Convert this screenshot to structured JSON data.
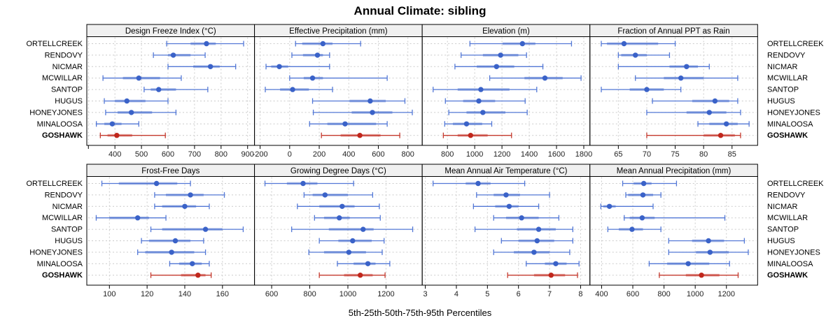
{
  "title": "Annual Climate: sibling",
  "caption": "5th-25th-50th-75th-95th Percentiles",
  "percentile_levels": [
    5,
    25,
    50,
    75,
    95
  ],
  "stations": [
    "ORTELLCREEK",
    "RENDOVY",
    "NICMAR",
    "MCWILLAR",
    "SANTOP",
    "HUGUS",
    "HONEYJONES",
    "MINALOOSA",
    "GOSHAWK"
  ],
  "highlight_station": "GOSHAWK",
  "colors": {
    "series": "#3A62C8",
    "series_whisker": "#5378D6",
    "series_band": "rgba(58,98,200,0.42)",
    "highlight": "#C0271C",
    "highlight_whisker": "#C53A2E",
    "highlight_band": "rgba(193,39,28,0.42)",
    "strip_bg": "#F0F0F0",
    "panel_border": "#000000",
    "grid": "#CBCBCB",
    "text": "#000000",
    "tick_text": "#222222"
  },
  "chart_data": [
    {
      "type": "scatter",
      "title": "Design Freeze Index (°C)",
      "xlim": [
        294,
        926
      ],
      "x_ticks": [
        300,
        400,
        500,
        600,
        700,
        800,
        900
      ],
      "x_tick_labels": [
        "",
        "400",
        "500",
        "600",
        "700",
        "800",
        "900"
      ],
      "percentiles": [
        [
          595,
          685,
          745,
          780,
          885
        ],
        [
          545,
          600,
          620,
          685,
          740
        ],
        [
          600,
          695,
          760,
          795,
          855
        ],
        [
          355,
          430,
          490,
          570,
          650
        ],
        [
          510,
          535,
          565,
          630,
          750
        ],
        [
          360,
          400,
          445,
          515,
          600
        ],
        [
          365,
          410,
          462,
          540,
          630
        ],
        [
          330,
          360,
          390,
          425,
          490
        ],
        [
          345,
          372,
          407,
          465,
          590
        ]
      ]
    },
    {
      "type": "scatter",
      "title": "Effective Precipitation (mm)",
      "xlim": [
        -238,
        897
      ],
      "x_ticks": [
        -200,
        0,
        200,
        400,
        600,
        800
      ],
      "x_tick_labels": [
        "-200",
        "0",
        "200",
        "400",
        "600",
        "800"
      ],
      "percentiles": [
        [
          40,
          85,
          225,
          290,
          480
        ],
        [
          15,
          90,
          188,
          225,
          270
        ],
        [
          -160,
          -125,
          -70,
          -10,
          270
        ],
        [
          0,
          95,
          155,
          225,
          660
        ],
        [
          -165,
          -65,
          20,
          130,
          290
        ],
        [
          155,
          405,
          545,
          650,
          780
        ],
        [
          160,
          420,
          560,
          695,
          830
        ],
        [
          135,
          255,
          375,
          585,
          660
        ],
        [
          215,
          345,
          475,
          615,
          745
        ]
      ]
    },
    {
      "type": "scatter",
      "title": "Elevation (m)",
      "xlim": [
        615,
        1845
      ],
      "x_ticks": [
        800,
        1000,
        1200,
        1400,
        1600,
        1800
      ],
      "x_tick_labels": [
        "800",
        "1000",
        "1200",
        "1400",
        "1600",
        "1800"
      ],
      "percentiles": [
        [
          965,
          1205,
          1350,
          1445,
          1710
        ],
        [
          900,
          1060,
          1190,
          1320,
          1380
        ],
        [
          855,
          1015,
          1160,
          1290,
          1500
        ],
        [
          1110,
          1365,
          1515,
          1645,
          1780
        ],
        [
          695,
          875,
          1045,
          1255,
          1455
        ],
        [
          785,
          915,
          1030,
          1150,
          1370
        ],
        [
          810,
          940,
          1060,
          1225,
          1385
        ],
        [
          780,
          840,
          940,
          1055,
          1125
        ],
        [
          770,
          875,
          970,
          1095,
          1270
        ]
      ]
    },
    {
      "type": "scatter",
      "title": "Fraction of Annual PPT as Rain",
      "xlim": [
        60,
        89.5
      ],
      "x_ticks": [
        65,
        70,
        75,
        80,
        85
      ],
      "x_tick_labels": [
        "65",
        "70",
        "75",
        "80",
        "85"
      ],
      "percentiles": [
        [
          62,
          63,
          66,
          72,
          75
        ],
        [
          65,
          65.5,
          68,
          70,
          74
        ],
        [
          65,
          74,
          77,
          79,
          81
        ],
        [
          68,
          73,
          76,
          80,
          86
        ],
        [
          62,
          67,
          70,
          73,
          76
        ],
        [
          71,
          78,
          82,
          84.5,
          86
        ],
        [
          70,
          77,
          81,
          84,
          86.5
        ],
        [
          79,
          81,
          84,
          86,
          88
        ],
        [
          70,
          80,
          83,
          85.5,
          86.5
        ]
      ]
    },
    {
      "type": "scatter",
      "title": "Frost-Free Days",
      "xlim": [
        88,
        177
      ],
      "x_ticks": [
        100,
        120,
        140,
        160
      ],
      "x_tick_labels": [
        "100",
        "120",
        "140",
        "160"
      ],
      "percentiles": [
        [
          96,
          105,
          125,
          136,
          143
        ],
        [
          124,
          130,
          143,
          150,
          161
        ],
        [
          124,
          128,
          140,
          146,
          153
        ],
        [
          93,
          100,
          115,
          121,
          130
        ],
        [
          122,
          128,
          151,
          160,
          171
        ],
        [
          117,
          121,
          135,
          143,
          150
        ],
        [
          115,
          119,
          133,
          145,
          151
        ],
        [
          132,
          137,
          144,
          149,
          153
        ],
        [
          122,
          138,
          147,
          151,
          154
        ]
      ]
    },
    {
      "type": "scatter",
      "title": "Growing Degree Days (°C)",
      "xlim": [
        510,
        1390
      ],
      "x_ticks": [
        600,
        800,
        1000,
        1200
      ],
      "x_tick_labels": [
        "600",
        "800",
        "1000",
        "1200"
      ],
      "percentiles": [
        [
          565,
          680,
          765,
          840,
          1030
        ],
        [
          770,
          815,
          880,
          1000,
          1130
        ],
        [
          735,
          850,
          970,
          1035,
          1165
        ],
        [
          825,
          875,
          955,
          1010,
          1170
        ],
        [
          705,
          900,
          1080,
          1135,
          1340
        ],
        [
          850,
          950,
          1025,
          1125,
          1190
        ],
        [
          795,
          875,
          1005,
          1095,
          1180
        ],
        [
          945,
          1030,
          1105,
          1145,
          1220
        ],
        [
          850,
          980,
          1065,
          1130,
          1195
        ]
      ]
    },
    {
      "type": "scatter",
      "title": "Mean Annual Air Temperature (°C)",
      "xlim": [
        2.9,
        8.3
      ],
      "x_ticks": [
        3,
        4,
        5,
        6,
        7,
        8
      ],
      "x_tick_labels": [
        "3",
        "4",
        "5",
        "6",
        "7",
        "8"
      ],
      "percentiles": [
        [
          3.25,
          4.3,
          4.7,
          5.1,
          6.2
        ],
        [
          4.65,
          5.2,
          5.6,
          6.05,
          7.0
        ],
        [
          4.55,
          5.25,
          5.7,
          6.0,
          6.65
        ],
        [
          5.2,
          5.6,
          6.1,
          6.65,
          7.3
        ],
        [
          4.6,
          5.95,
          6.65,
          7.2,
          7.75
        ],
        [
          5.45,
          6.0,
          6.6,
          7.15,
          7.75
        ],
        [
          5.2,
          5.85,
          6.5,
          7.0,
          7.65
        ],
        [
          6.25,
          6.85,
          7.2,
          7.55,
          7.95
        ],
        [
          5.65,
          6.5,
          7.05,
          7.5,
          7.9
        ]
      ]
    },
    {
      "type": "scatter",
      "title": "Mean Annual Precipitation (mm)",
      "xlim": [
        325,
        1400
      ],
      "x_ticks": [
        400,
        600,
        800,
        1000,
        1200
      ],
      "x_tick_labels": [
        "400",
        "600",
        "800",
        "1000",
        "1200"
      ],
      "percentiles": [
        [
          535,
          605,
          670,
          720,
          880
        ],
        [
          555,
          570,
          665,
          730,
          780
        ],
        [
          395,
          410,
          450,
          490,
          730
        ],
        [
          545,
          580,
          660,
          740,
          1190
        ],
        [
          440,
          510,
          595,
          665,
          780
        ],
        [
          830,
          980,
          1085,
          1185,
          1315
        ],
        [
          830,
          1005,
          1095,
          1215,
          1340
        ],
        [
          705,
          820,
          955,
          1090,
          1220
        ],
        [
          770,
          940,
          1040,
          1155,
          1275
        ]
      ]
    }
  ]
}
